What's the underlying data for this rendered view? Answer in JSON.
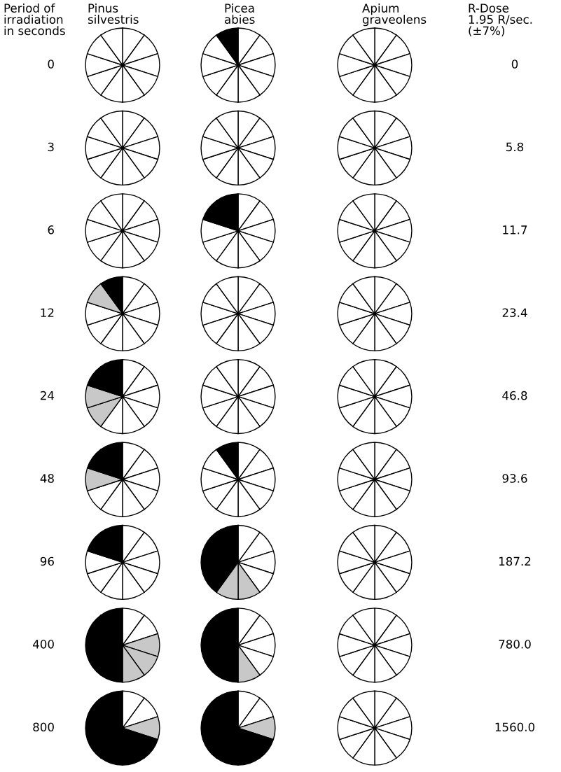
{
  "chart_data": [
    {
      "type": "other",
      "annotations": [
        "Period of\nirradiation\nin seconds",
        "Pinus\nsilvestris",
        "Picea\nabies",
        "Apium\ngraveolens",
        "R-Dose\n1.95 R/sec.\n(±7%)",
        "0",
        "3",
        "6",
        "12",
        "24",
        "48",
        "96",
        "400",
        "800",
        "0",
        "5.8",
        "11.7",
        "23.4",
        "46.8",
        "93.6",
        "187.2",
        "780.0",
        "1560.0"
      ]
    },
    {
      "type": "pie",
      "categories": [
        null,
        null,
        null,
        null,
        null,
        null,
        null,
        null,
        null,
        null
      ],
      "values": [
        10,
        10,
        10,
        10,
        10,
        10,
        10,
        10,
        10,
        10
      ],
      "colors": [
        "#ffffff",
        "#ffffff",
        "#ffffff",
        "#ffffff",
        "#ffffff",
        "#ffffff",
        "#ffffff",
        "#ffffff",
        "#ffffff",
        "#ffffff"
      ]
    },
    {
      "type": "pie",
      "categories": [
        null,
        null,
        null,
        null,
        null,
        null,
        null,
        null,
        null,
        null
      ],
      "values": [
        10,
        10,
        10,
        10,
        10,
        10,
        10,
        10,
        10,
        10
      ],
      "colors": [
        "#ffffff",
        "#ffffff",
        "#ffffff",
        "#ffffff",
        "#ffffff",
        "#ffffff",
        "#ffffff",
        "#ffffff",
        "#ffffff",
        "#000000"
      ]
    },
    {
      "type": "pie",
      "categories": [
        null,
        null,
        null,
        null,
        null,
        null,
        null,
        null,
        null,
        null
      ],
      "values": [
        10,
        10,
        10,
        10,
        10,
        10,
        10,
        10,
        10,
        10
      ],
      "colors": [
        "#ffffff",
        "#ffffff",
        "#ffffff",
        "#ffffff",
        "#ffffff",
        "#ffffff",
        "#ffffff",
        "#ffffff",
        "#ffffff",
        "#ffffff"
      ]
    },
    {
      "type": "pie",
      "categories": [
        null,
        null,
        null,
        null,
        null,
        null,
        null,
        null,
        null,
        null
      ],
      "values": [
        10,
        10,
        10,
        10,
        10,
        10,
        10,
        10,
        10,
        10
      ],
      "colors": [
        "#ffffff",
        "#ffffff",
        "#ffffff",
        "#ffffff",
        "#ffffff",
        "#ffffff",
        "#ffffff",
        "#ffffff",
        "#ffffff",
        "#ffffff"
      ]
    },
    {
      "type": "pie",
      "categories": [
        null,
        null,
        null,
        null,
        null,
        null,
        null,
        null,
        null,
        null
      ],
      "values": [
        10,
        10,
        10,
        10,
        10,
        10,
        10,
        10,
        10,
        10
      ],
      "colors": [
        "#ffffff",
        "#ffffff",
        "#ffffff",
        "#ffffff",
        "#ffffff",
        "#ffffff",
        "#ffffff",
        "#ffffff",
        "#ffffff",
        "#ffffff"
      ]
    },
    {
      "type": "pie",
      "categories": [
        null,
        null,
        null,
        null,
        null,
        null,
        null,
        null,
        null,
        null
      ],
      "values": [
        10,
        10,
        10,
        10,
        10,
        10,
        10,
        10,
        10,
        10
      ],
      "colors": [
        "#ffffff",
        "#ffffff",
        "#ffffff",
        "#ffffff",
        "#ffffff",
        "#ffffff",
        "#ffffff",
        "#ffffff",
        "#ffffff",
        "#ffffff"
      ]
    },
    {
      "type": "pie",
      "categories": [
        null,
        null,
        null,
        null,
        null,
        null,
        null,
        null,
        null,
        null
      ],
      "values": [
        10,
        10,
        10,
        10,
        10,
        10,
        10,
        10,
        10,
        10
      ],
      "colors": [
        "#ffffff",
        "#ffffff",
        "#ffffff",
        "#ffffff",
        "#ffffff",
        "#ffffff",
        "#ffffff",
        "#ffffff",
        "#ffffff",
        "#ffffff"
      ]
    },
    {
      "type": "pie",
      "categories": [
        null,
        null,
        null,
        null,
        null,
        null,
        null,
        null,
        null,
        null
      ],
      "values": [
        10,
        10,
        10,
        10,
        10,
        10,
        10,
        10,
        10,
        10
      ],
      "colors": [
        "#ffffff",
        "#ffffff",
        "#ffffff",
        "#ffffff",
        "#ffffff",
        "#ffffff",
        "#ffffff",
        "#ffffff",
        "#000000",
        "#000000"
      ]
    },
    {
      "type": "pie",
      "categories": [
        null,
        null,
        null,
        null,
        null,
        null,
        null,
        null,
        null,
        null
      ],
      "values": [
        10,
        10,
        10,
        10,
        10,
        10,
        10,
        10,
        10,
        10
      ],
      "colors": [
        "#ffffff",
        "#ffffff",
        "#ffffff",
        "#ffffff",
        "#ffffff",
        "#ffffff",
        "#ffffff",
        "#ffffff",
        "#ffffff",
        "#ffffff"
      ]
    },
    {
      "type": "pie",
      "categories": [
        null,
        null,
        null,
        null,
        null,
        null,
        null,
        null,
        null,
        null
      ],
      "values": [
        10,
        10,
        10,
        10,
        10,
        10,
        10,
        10,
        10,
        10
      ],
      "colors": [
        "#ffffff",
        "#ffffff",
        "#ffffff",
        "#ffffff",
        "#ffffff",
        "#ffffff",
        "#ffffff",
        "#ffffff",
        "#c8c8c8",
        "#000000"
      ]
    },
    {
      "type": "pie",
      "categories": [
        null,
        null,
        null,
        null,
        null,
        null,
        null,
        null,
        null,
        null
      ],
      "values": [
        10,
        10,
        10,
        10,
        10,
        10,
        10,
        10,
        10,
        10
      ],
      "colors": [
        "#ffffff",
        "#ffffff",
        "#ffffff",
        "#ffffff",
        "#ffffff",
        "#ffffff",
        "#ffffff",
        "#ffffff",
        "#ffffff",
        "#ffffff"
      ]
    },
    {
      "type": "pie",
      "categories": [
        null,
        null,
        null,
        null,
        null,
        null,
        null,
        null,
        null,
        null
      ],
      "values": [
        10,
        10,
        10,
        10,
        10,
        10,
        10,
        10,
        10,
        10
      ],
      "colors": [
        "#ffffff",
        "#ffffff",
        "#ffffff",
        "#ffffff",
        "#ffffff",
        "#ffffff",
        "#ffffff",
        "#ffffff",
        "#ffffff",
        "#ffffff"
      ]
    },
    {
      "type": "pie",
      "categories": [
        null,
        null,
        null,
        null,
        null,
        null,
        null,
        null,
        null,
        null
      ],
      "values": [
        10,
        10,
        10,
        10,
        10,
        10,
        10,
        10,
        10,
        10
      ],
      "colors": [
        "#ffffff",
        "#ffffff",
        "#ffffff",
        "#ffffff",
        "#ffffff",
        "#ffffff",
        "#c8c8c8",
        "#c8c8c8",
        "#000000",
        "#000000"
      ]
    },
    {
      "type": "pie",
      "categories": [
        null,
        null,
        null,
        null,
        null,
        null,
        null,
        null,
        null,
        null
      ],
      "values": [
        10,
        10,
        10,
        10,
        10,
        10,
        10,
        10,
        10,
        10
      ],
      "colors": [
        "#ffffff",
        "#ffffff",
        "#ffffff",
        "#ffffff",
        "#ffffff",
        "#ffffff",
        "#ffffff",
        "#ffffff",
        "#ffffff",
        "#ffffff"
      ]
    },
    {
      "type": "pie",
      "categories": [
        null,
        null,
        null,
        null,
        null,
        null,
        null,
        null,
        null,
        null
      ],
      "values": [
        10,
        10,
        10,
        10,
        10,
        10,
        10,
        10,
        10,
        10
      ],
      "colors": [
        "#ffffff",
        "#ffffff",
        "#ffffff",
        "#ffffff",
        "#ffffff",
        "#ffffff",
        "#ffffff",
        "#ffffff",
        "#ffffff",
        "#ffffff"
      ]
    },
    {
      "type": "pie",
      "categories": [
        null,
        null,
        null,
        null,
        null,
        null,
        null,
        null,
        null,
        null
      ],
      "values": [
        10,
        10,
        10,
        10,
        10,
        10,
        10,
        10,
        10,
        10
      ],
      "colors": [
        "#ffffff",
        "#ffffff",
        "#ffffff",
        "#ffffff",
        "#ffffff",
        "#ffffff",
        "#ffffff",
        "#c8c8c8",
        "#000000",
        "#000000"
      ]
    },
    {
      "type": "pie",
      "categories": [
        null,
        null,
        null,
        null,
        null,
        null,
        null,
        null,
        null,
        null
      ],
      "values": [
        10,
        10,
        10,
        10,
        10,
        10,
        10,
        10,
        10,
        10
      ],
      "colors": [
        "#ffffff",
        "#ffffff",
        "#ffffff",
        "#ffffff",
        "#ffffff",
        "#ffffff",
        "#ffffff",
        "#ffffff",
        "#ffffff",
        "#000000"
      ]
    },
    {
      "type": "pie",
      "categories": [
        null,
        null,
        null,
        null,
        null,
        null,
        null,
        null,
        null,
        null
      ],
      "values": [
        10,
        10,
        10,
        10,
        10,
        10,
        10,
        10,
        10,
        10
      ],
      "colors": [
        "#ffffff",
        "#ffffff",
        "#ffffff",
        "#ffffff",
        "#ffffff",
        "#ffffff",
        "#ffffff",
        "#ffffff",
        "#ffffff",
        "#ffffff"
      ]
    },
    {
      "type": "pie",
      "categories": [
        null,
        null,
        null,
        null,
        null,
        null,
        null,
        null,
        null,
        null
      ],
      "values": [
        10,
        10,
        10,
        10,
        10,
        10,
        10,
        10,
        10,
        10
      ],
      "colors": [
        "#ffffff",
        "#ffffff",
        "#ffffff",
        "#ffffff",
        "#ffffff",
        "#ffffff",
        "#ffffff",
        "#ffffff",
        "#000000",
        "#000000"
      ]
    },
    {
      "type": "pie",
      "categories": [
        null,
        null,
        null,
        null,
        null,
        null,
        null,
        null,
        null,
        null
      ],
      "values": [
        10,
        10,
        10,
        10,
        10,
        10,
        10,
        10,
        10,
        10
      ],
      "colors": [
        "#ffffff",
        "#ffffff",
        "#ffffff",
        "#ffffff",
        "#c8c8c8",
        "#c8c8c8",
        "#000000",
        "#000000",
        "#000000",
        "#000000"
      ]
    },
    {
      "type": "pie",
      "categories": [
        null,
        null,
        null,
        null,
        null,
        null,
        null,
        null,
        null,
        null
      ],
      "values": [
        10,
        10,
        10,
        10,
        10,
        10,
        10,
        10,
        10,
        10
      ],
      "colors": [
        "#ffffff",
        "#ffffff",
        "#ffffff",
        "#ffffff",
        "#ffffff",
        "#ffffff",
        "#ffffff",
        "#ffffff",
        "#ffffff",
        "#ffffff"
      ]
    },
    {
      "type": "pie",
      "categories": [
        null,
        null,
        null,
        null,
        null,
        null,
        null,
        null,
        null,
        null
      ],
      "values": [
        10,
        10,
        10,
        10,
        10,
        10,
        10,
        10,
        10,
        10
      ],
      "colors": [
        "#ffffff",
        "#ffffff",
        "#c8c8c8",
        "#c8c8c8",
        "#c8c8c8",
        "#000000",
        "#000000",
        "#000000",
        "#000000",
        "#000000"
      ]
    },
    {
      "type": "pie",
      "categories": [
        null,
        null,
        null,
        null,
        null,
        null,
        null,
        null,
        null,
        null
      ],
      "values": [
        10,
        10,
        10,
        10,
        10,
        10,
        10,
        10,
        10,
        10
      ],
      "colors": [
        "#ffffff",
        "#ffffff",
        "#ffffff",
        "#ffffff",
        "#c8c8c8",
        "#000000",
        "#000000",
        "#000000",
        "#000000",
        "#000000"
      ]
    },
    {
      "type": "pie",
      "categories": [
        null,
        null,
        null,
        null,
        null,
        null,
        null,
        null,
        null,
        null
      ],
      "values": [
        10,
        10,
        10,
        10,
        10,
        10,
        10,
        10,
        10,
        10
      ],
      "colors": [
        "#ffffff",
        "#ffffff",
        "#ffffff",
        "#ffffff",
        "#ffffff",
        "#ffffff",
        "#ffffff",
        "#ffffff",
        "#ffffff",
        "#ffffff"
      ]
    },
    {
      "type": "pie",
      "categories": [
        null,
        null,
        null,
        null,
        null,
        null,
        null,
        null,
        null,
        null
      ],
      "values": [
        10,
        10,
        10,
        10,
        10,
        10,
        10,
        10,
        10,
        10
      ],
      "colors": [
        "#ffffff",
        "#ffffff",
        "#c8c8c8",
        "#000000",
        "#000000",
        "#000000",
        "#000000",
        "#000000",
        "#000000",
        "#000000"
      ]
    },
    {
      "type": "pie",
      "categories": [
        null,
        null,
        null,
        null,
        null,
        null,
        null,
        null,
        null,
        null
      ],
      "values": [
        10,
        10,
        10,
        10,
        10,
        10,
        10,
        10,
        10,
        10
      ],
      "colors": [
        "#ffffff",
        "#ffffff",
        "#c8c8c8",
        "#000000",
        "#000000",
        "#000000",
        "#000000",
        "#000000",
        "#000000",
        "#000000"
      ]
    },
    {
      "type": "pie",
      "categories": [
        null,
        null,
        null,
        null,
        null,
        null,
        null,
        null,
        null,
        null
      ],
      "values": [
        10,
        10,
        10,
        10,
        10,
        10,
        10,
        10,
        10,
        10
      ],
      "colors": [
        "#ffffff",
        "#ffffff",
        "#ffffff",
        "#ffffff",
        "#ffffff",
        "#ffffff",
        "#ffffff",
        "#ffffff",
        "#ffffff",
        "#ffffff"
      ]
    }
  ]
}
